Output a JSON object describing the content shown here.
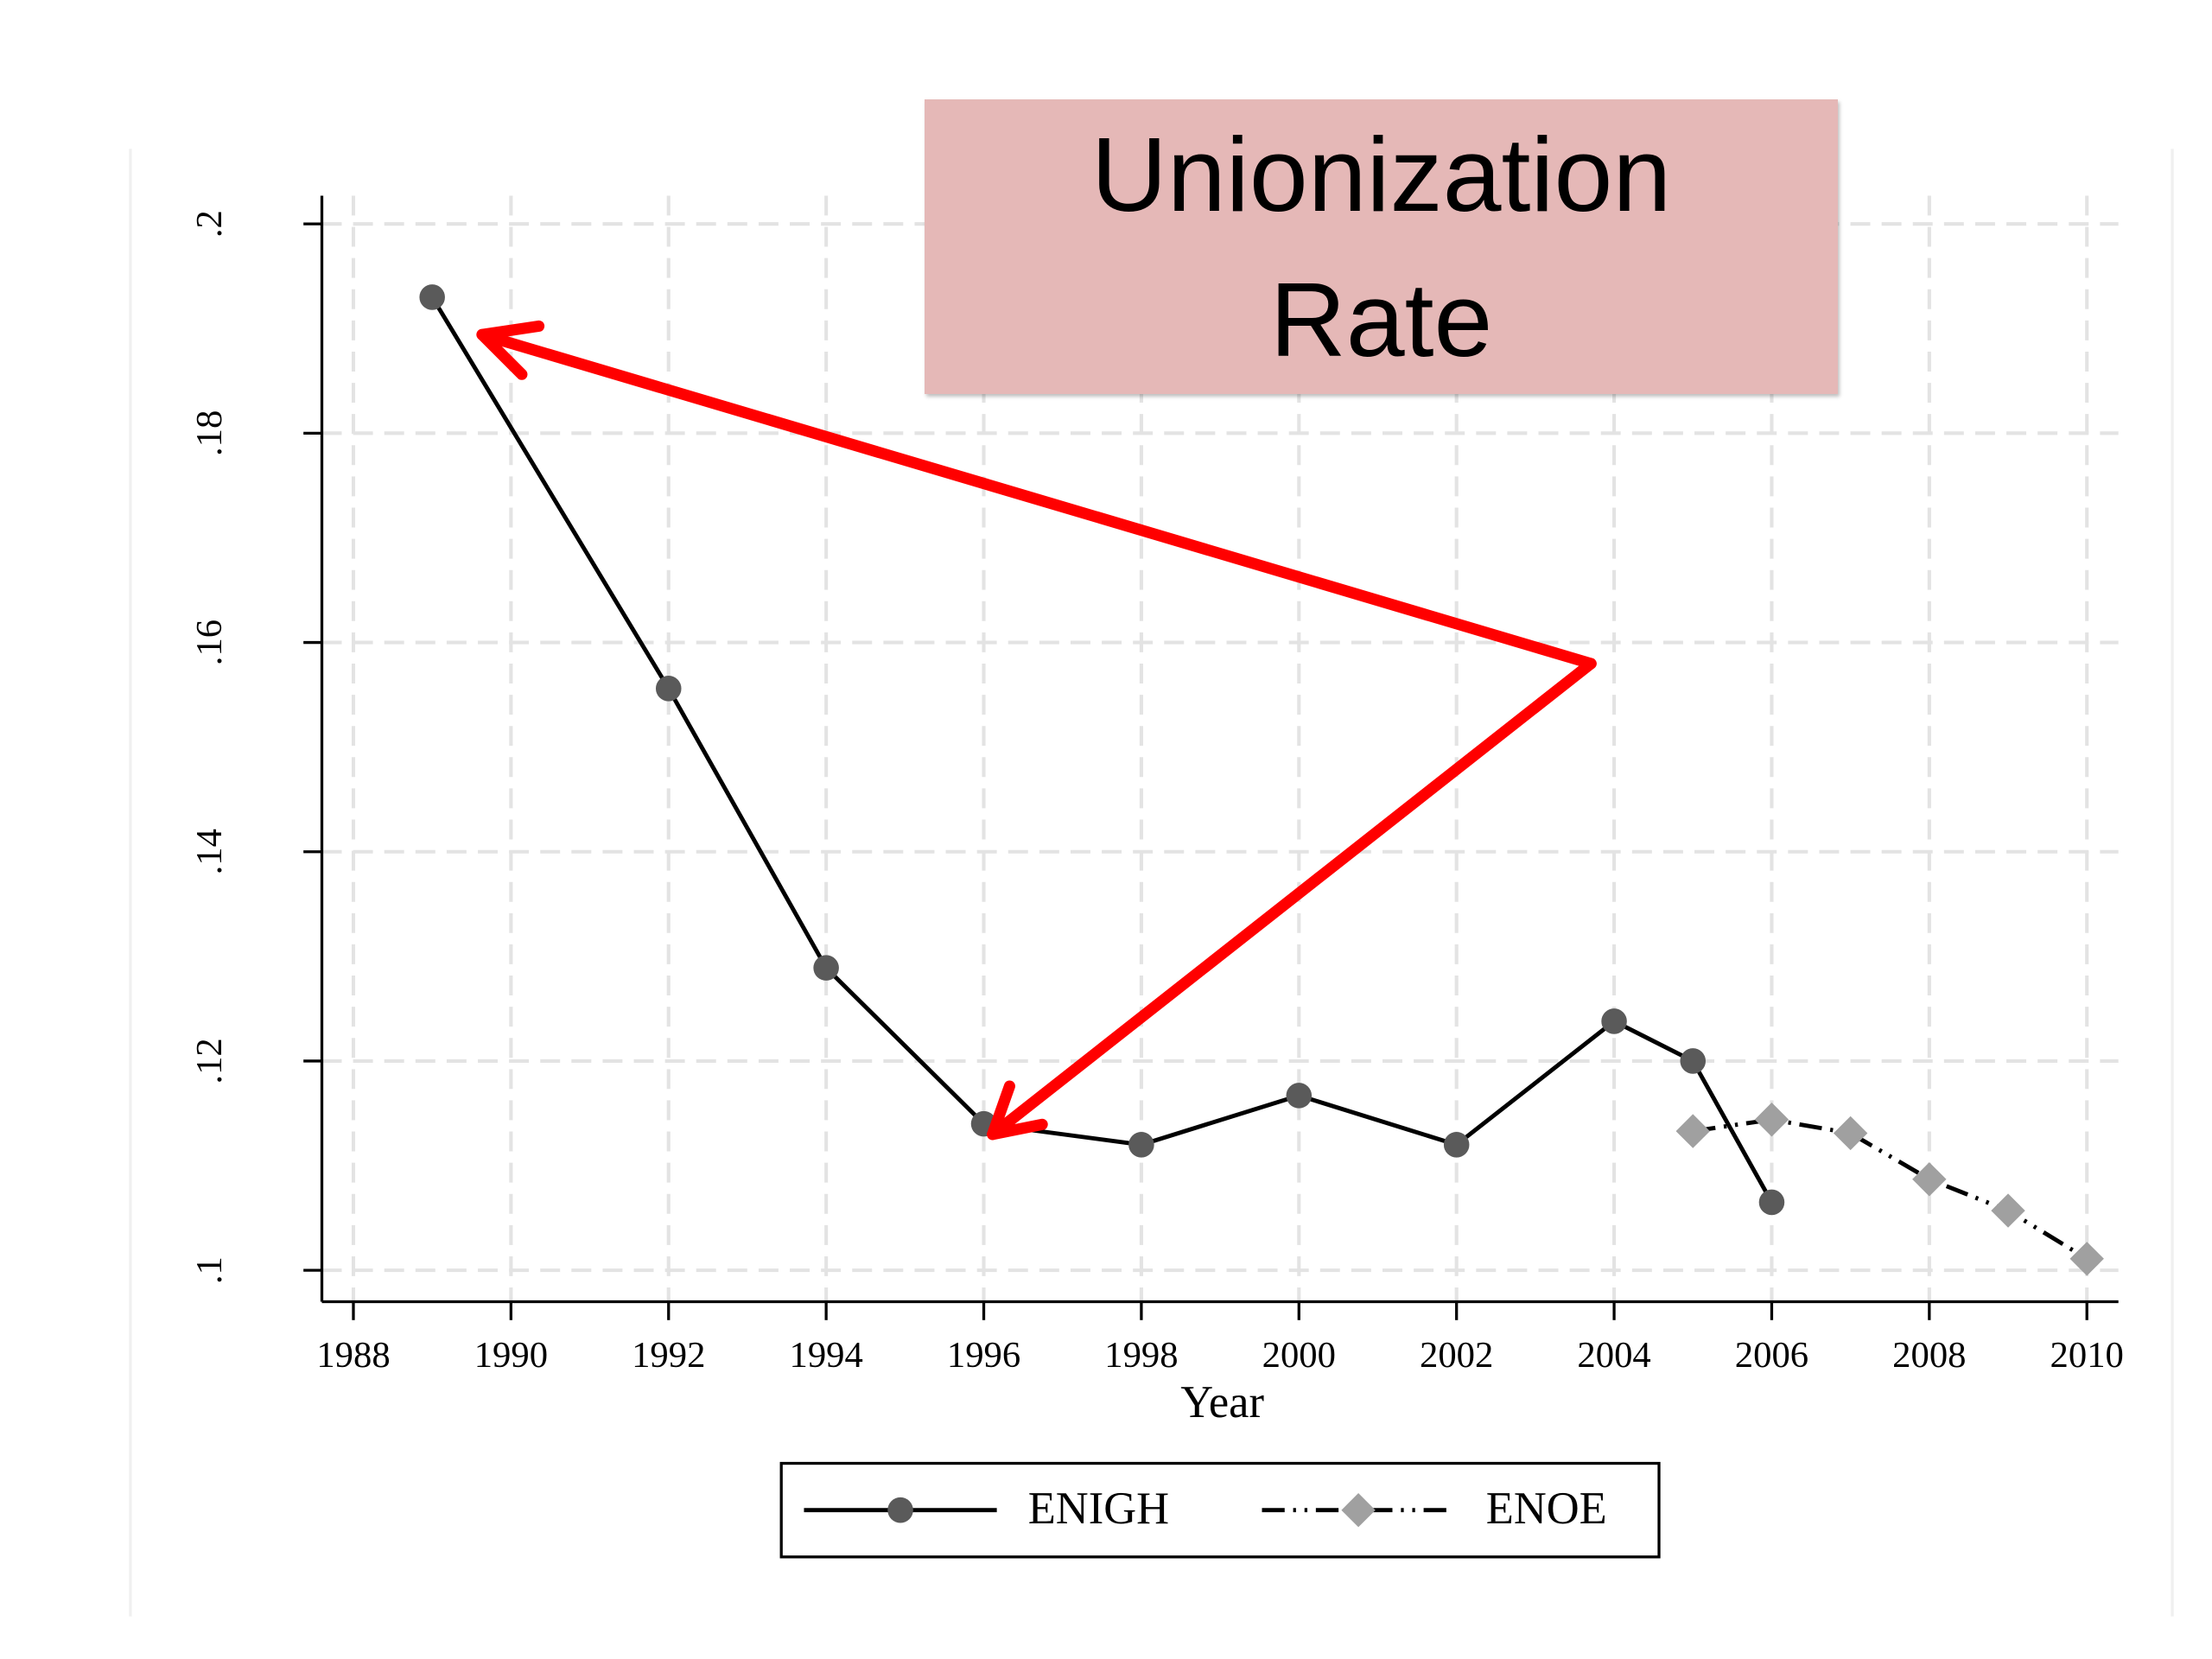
{
  "chart_data": {
    "type": "line",
    "title": "Unionization Rate",
    "x_label": "Year",
    "xlim": [
      1987.6,
      2010.4
    ],
    "ylim": [
      0.097,
      0.2027
    ],
    "xticks": [
      1988,
      1990,
      1992,
      1994,
      1996,
      1998,
      2000,
      2002,
      2004,
      2006,
      2008,
      2010
    ],
    "yticks": [
      {
        "value": 0.1,
        "label": ".1"
      },
      {
        "value": 0.12,
        "label": ".12"
      },
      {
        "value": 0.14,
        "label": ".14"
      },
      {
        "value": 0.16,
        "label": ".16"
      },
      {
        "value": 0.18,
        "label": ".18"
      },
      {
        "value": 0.2,
        "label": ".2"
      }
    ],
    "grid": true,
    "legend": "bottom",
    "series": [
      {
        "name": "ENIGH",
        "color": "#5a5a5a",
        "line_color": "#000000",
        "line_style": "solid",
        "marker": "circle",
        "x": [
          1989,
          1992,
          1994,
          1996,
          1998,
          2000,
          2002,
          2004,
          2005,
          2006
        ],
        "values": [
          0.193,
          0.1556,
          0.1289,
          0.114,
          0.112,
          0.1167,
          0.112,
          0.1238,
          0.12,
          0.1065
        ]
      },
      {
        "name": "ENOE",
        "color": "#a0a0a0",
        "line_color": "#000000",
        "line_style": "dashdot",
        "marker": "diamond",
        "x": [
          2005,
          2006,
          2007,
          2008,
          2009,
          2010
        ],
        "values": [
          0.1133,
          0.1144,
          0.1131,
          0.1087,
          0.1057,
          0.1011
        ]
      }
    ]
  }
}
